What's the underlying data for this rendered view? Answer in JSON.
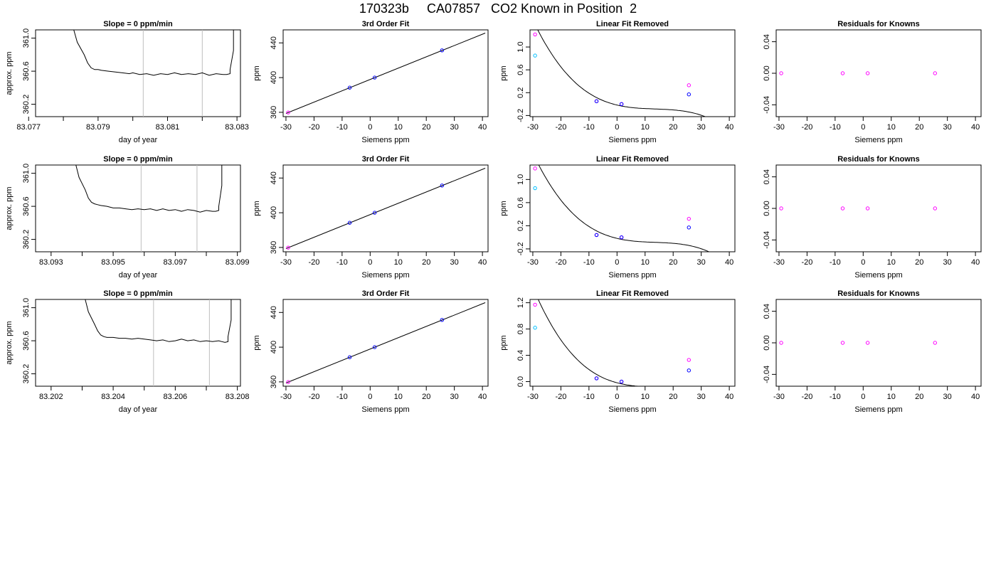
{
  "page": {
    "title": "170323b     CA07857   CO2 Known in Position  2"
  },
  "colors": {
    "curve": "#000000",
    "vline": "#bebebe",
    "point_blue": "#0000ff",
    "point_magenta": "#ff00ff",
    "point_cyan": "#00bfff",
    "point_red": "#ff0000"
  },
  "chart_data": [
    {
      "type": "line",
      "title": "Slope =  0  ppm/min",
      "xlabel": "day of year",
      "ylabel": "approx. ppm",
      "xlim": [
        83.0772,
        83.0831
      ],
      "ylim": [
        360.05,
        361.1
      ],
      "xticks": [
        83.077,
        83.079,
        83.081,
        83.083
      ],
      "xtick_labels": [
        "83.077",
        "83.079",
        "83.081",
        "83.083"
      ],
      "xminor": [
        83.078,
        83.08,
        83.082
      ],
      "yticks": [
        360.2,
        360.6,
        361.0
      ],
      "ytick_labels": [
        "360.2",
        "360.6",
        "361.0"
      ],
      "vlines": [
        83.0803,
        83.082
      ],
      "series": [
        {
          "x": [
            83.0783,
            83.0784,
            83.0786,
            83.0787,
            83.0788,
            83.0789,
            83.079,
            83.0791,
            83.0793,
            83.0795,
            83.0797,
            83.0799,
            83.08,
            83.0802,
            83.0804,
            83.0806,
            83.0808,
            83.081,
            83.0812,
            83.0814,
            83.0816,
            83.0818,
            83.082,
            83.0822,
            83.0824,
            83.0826,
            83.0827,
            83.0828,
            83.0828,
            83.0829,
            83.0829
          ],
          "y": [
            361.1,
            360.95,
            360.8,
            360.7,
            360.64,
            360.62,
            360.62,
            360.61,
            360.6,
            360.59,
            360.58,
            360.57,
            360.58,
            360.56,
            360.57,
            360.55,
            360.57,
            360.56,
            360.58,
            360.56,
            360.57,
            360.56,
            360.58,
            360.55,
            360.57,
            360.56,
            360.56,
            360.57,
            360.62,
            360.85,
            361.1
          ]
        }
      ]
    },
    {
      "type": "scatter",
      "title": "3rd Order Fit",
      "xlabel": "Siemens ppm",
      "ylabel": "ppm",
      "xlim": [
        -31,
        42
      ],
      "ylim": [
        355,
        455
      ],
      "xticks": [
        -30,
        -20,
        -10,
        0,
        10,
        20,
        30,
        40
      ],
      "xtick_labels": [
        "-30",
        "-20",
        "-10",
        "0",
        "10",
        "20",
        "30",
        "40"
      ],
      "yticks": [
        360,
        400,
        440
      ],
      "ytick_labels": [
        "360",
        "400",
        "440"
      ],
      "line": {
        "x": [
          -30,
          41
        ],
        "y": [
          358.7,
          451.3
        ]
      },
      "points": [
        {
          "x": -29.2,
          "y": 359.8,
          "color": "point_magenta"
        },
        {
          "x": -7.3,
          "y": 388.4,
          "color": "point_blue"
        },
        {
          "x": 1.6,
          "y": 400.0,
          "color": "point_blue"
        },
        {
          "x": 25.6,
          "y": 431.4,
          "color": "point_blue"
        }
      ]
    },
    {
      "type": "scatter",
      "title": "Linear Fit Removed",
      "xlabel": "Siemens ppm",
      "ylabel": "ppm",
      "xlim": [
        -31,
        42
      ],
      "ylim": [
        -0.22,
        1.3
      ],
      "xticks": [
        -30,
        -20,
        -10,
        0,
        10,
        20,
        30,
        40
      ],
      "xtick_labels": [
        "-30",
        "-20",
        "-10",
        "0",
        "10",
        "20",
        "30",
        "40"
      ],
      "yticks": [
        -0.2,
        0.2,
        0.6,
        1.0
      ],
      "ytick_labels": [
        "-0.2",
        "0.2",
        "0.6",
        "1.0"
      ],
      "curve": {
        "x0": -29.2,
        "x1": 41,
        "b0": -0.0169,
        "b1": -0.01165,
        "b2": 0.00073,
        "b3": -1.8e-05
      },
      "points": [
        {
          "x": -29.2,
          "y": 0.85,
          "color": "point_cyan"
        },
        {
          "x": -29.2,
          "y": 1.22,
          "color": "point_magenta"
        },
        {
          "x": -7.3,
          "y": 0.05,
          "color": "point_magenta"
        },
        {
          "x": -7.3,
          "y": 0.05,
          "color": "point_blue"
        },
        {
          "x": 1.6,
          "y": 0.0,
          "color": "point_magenta"
        },
        {
          "x": 1.6,
          "y": 0.0,
          "color": "point_blue"
        },
        {
          "x": 25.6,
          "y": 0.33,
          "color": "point_magenta"
        },
        {
          "x": 25.6,
          "y": 0.17,
          "color": "point_blue"
        }
      ]
    },
    {
      "type": "scatter",
      "title": "Residuals for Knowns",
      "xlabel": "Siemens ppm",
      "ylabel": "",
      "xlim": [
        -31,
        42
      ],
      "ylim": [
        -0.055,
        0.055
      ],
      "xticks": [
        -30,
        -20,
        -10,
        0,
        10,
        20,
        30,
        40
      ],
      "xtick_labels": [
        "-30",
        "-20",
        "-10",
        "0",
        "10",
        "20",
        "30",
        "40"
      ],
      "yticks": [
        -0.04,
        0.0,
        0.04
      ],
      "ytick_labels": [
        "-0.04",
        "0.00",
        "0.04"
      ],
      "points": [
        {
          "x": -29.2,
          "y": 0,
          "color": "point_magenta"
        },
        {
          "x": -7.3,
          "y": 0,
          "color": "point_magenta"
        },
        {
          "x": 1.6,
          "y": 0,
          "color": "point_magenta"
        },
        {
          "x": 25.6,
          "y": 0,
          "color": "point_magenta"
        }
      ]
    },
    {
      "type": "line",
      "title": "Slope =  0  ppm/min",
      "xlabel": "day of year",
      "ylabel": "approx. ppm",
      "xlim": [
        83.0925,
        83.0991
      ],
      "ylim": [
        360.05,
        361.1
      ],
      "xticks": [
        83.093,
        83.095,
        83.097,
        83.099
      ],
      "xtick_labels": [
        "83.093",
        "83.095",
        "83.097",
        "83.099"
      ],
      "xminor": [
        83.094,
        83.096,
        83.098
      ],
      "yticks": [
        360.2,
        360.6,
        361.0
      ],
      "ytick_labels": [
        "360.2",
        "360.6",
        "361.0"
      ],
      "vlines": [
        83.0959,
        83.0977
      ],
      "series": [
        {
          "x": [
            83.0938,
            83.0939,
            83.0941,
            83.0942,
            83.0943,
            83.0944,
            83.0945,
            83.0946,
            83.0948,
            83.095,
            83.0952,
            83.0954,
            83.0956,
            83.0958,
            83.096,
            83.0962,
            83.0964,
            83.0966,
            83.0968,
            83.097,
            83.0972,
            83.0974,
            83.0976,
            83.0978,
            83.098,
            83.0982,
            83.0983,
            83.0984,
            83.0984,
            83.0985,
            83.0985
          ],
          "y": [
            361.1,
            360.95,
            360.8,
            360.7,
            360.65,
            360.63,
            360.62,
            360.61,
            360.6,
            360.58,
            360.58,
            360.57,
            360.56,
            360.57,
            360.56,
            360.57,
            360.55,
            360.57,
            360.55,
            360.56,
            360.54,
            360.56,
            360.55,
            360.53,
            360.55,
            360.54,
            360.54,
            360.55,
            360.6,
            360.85,
            361.1
          ]
        }
      ]
    },
    {
      "type": "scatter",
      "title": "3rd Order Fit",
      "xlabel": "Siemens ppm",
      "ylabel": "ppm",
      "xlim": [
        -31,
        42
      ],
      "ylim": [
        355,
        455
      ],
      "xticks": [
        -30,
        -20,
        -10,
        0,
        10,
        20,
        30,
        40
      ],
      "xtick_labels": [
        "-30",
        "-20",
        "-10",
        "0",
        "10",
        "20",
        "30",
        "40"
      ],
      "yticks": [
        360,
        400,
        440
      ],
      "ytick_labels": [
        "360",
        "400",
        "440"
      ],
      "line": {
        "x": [
          -30,
          41
        ],
        "y": [
          358.7,
          451.3
        ]
      },
      "points": [
        {
          "x": -29.2,
          "y": 359.8,
          "color": "point_magenta"
        },
        {
          "x": -7.3,
          "y": 388.4,
          "color": "point_blue"
        },
        {
          "x": 1.6,
          "y": 400.0,
          "color": "point_blue"
        },
        {
          "x": 25.6,
          "y": 431.4,
          "color": "point_blue"
        }
      ]
    },
    {
      "type": "scatter",
      "title": "Linear Fit Removed",
      "xlabel": "Siemens ppm",
      "ylabel": "ppm",
      "xlim": [
        -31,
        42
      ],
      "ylim": [
        -0.25,
        1.25
      ],
      "xticks": [
        -30,
        -20,
        -10,
        0,
        10,
        20,
        30,
        40
      ],
      "xtick_labels": [
        "-30",
        "-20",
        "-10",
        "0",
        "10",
        "20",
        "30",
        "40"
      ],
      "yticks": [
        -0.2,
        0.2,
        0.6,
        1.0
      ],
      "ytick_labels": [
        "-0.2",
        "0.2",
        "0.6",
        "1.0"
      ],
      "curve": {
        "x0": -29.2,
        "x1": 41,
        "b0": -0.0183,
        "b1": -0.01155,
        "b2": 0.00072,
        "b3": -1.78e-05
      },
      "points": [
        {
          "x": -29.2,
          "y": 0.85,
          "color": "point_cyan"
        },
        {
          "x": -29.2,
          "y": 1.19,
          "color": "point_magenta"
        },
        {
          "x": -7.3,
          "y": 0.04,
          "color": "point_magenta"
        },
        {
          "x": -7.3,
          "y": 0.04,
          "color": "point_blue"
        },
        {
          "x": 1.6,
          "y": 0.0,
          "color": "point_magenta"
        },
        {
          "x": 1.6,
          "y": 0.0,
          "color": "point_blue"
        },
        {
          "x": 25.6,
          "y": 0.32,
          "color": "point_magenta"
        },
        {
          "x": 25.6,
          "y": 0.17,
          "color": "point_blue"
        }
      ]
    },
    {
      "type": "scatter",
      "title": "Residuals for Knowns",
      "xlabel": "Siemens ppm",
      "ylabel": "",
      "xlim": [
        -31,
        42
      ],
      "ylim": [
        -0.055,
        0.055
      ],
      "xticks": [
        -30,
        -20,
        -10,
        0,
        10,
        20,
        30,
        40
      ],
      "xtick_labels": [
        "-30",
        "-20",
        "-10",
        "0",
        "10",
        "20",
        "30",
        "40"
      ],
      "yticks": [
        -0.04,
        0.0,
        0.04
      ],
      "ytick_labels": [
        "-0.04",
        "0.00",
        "0.04"
      ],
      "points": [
        {
          "x": -29.2,
          "y": 0,
          "color": "point_magenta"
        },
        {
          "x": -7.3,
          "y": 0,
          "color": "point_magenta"
        },
        {
          "x": 1.6,
          "y": 0,
          "color": "point_magenta"
        },
        {
          "x": 25.6,
          "y": 0,
          "color": "point_magenta"
        }
      ]
    },
    {
      "type": "line",
      "title": "Slope =  0  ppm/min",
      "xlabel": "day of year",
      "ylabel": "approx. ppm",
      "xlim": [
        83.2015,
        83.2081
      ],
      "ylim": [
        360.05,
        361.1
      ],
      "xticks": [
        83.202,
        83.204,
        83.206,
        83.208
      ],
      "xtick_labels": [
        "83.202",
        "83.204",
        "83.206",
        "83.208"
      ],
      "xminor": [
        83.203,
        83.205,
        83.207
      ],
      "yticks": [
        360.2,
        360.6,
        361.0
      ],
      "ytick_labels": [
        "360.2",
        "360.6",
        "361.0"
      ],
      "vlines": [
        83.2053,
        83.2071
      ],
      "series": [
        {
          "x": [
            83.2031,
            83.2032,
            83.2034,
            83.2035,
            83.2036,
            83.2037,
            83.2038,
            83.204,
            83.2042,
            83.2044,
            83.2046,
            83.2048,
            83.205,
            83.2052,
            83.2054,
            83.2056,
            83.2058,
            83.206,
            83.2062,
            83.2064,
            83.2066,
            83.2068,
            83.207,
            83.2072,
            83.2074,
            83.2075,
            83.2076,
            83.2077,
            83.2077,
            83.2078,
            83.2078
          ],
          "y": [
            361.1,
            360.95,
            360.8,
            360.72,
            360.67,
            360.65,
            360.64,
            360.64,
            360.63,
            360.63,
            360.62,
            360.63,
            360.62,
            360.61,
            360.6,
            360.61,
            360.59,
            360.6,
            360.62,
            360.6,
            360.61,
            360.59,
            360.6,
            360.59,
            360.6,
            360.59,
            360.58,
            360.59,
            360.65,
            360.85,
            361.1
          ]
        }
      ]
    },
    {
      "type": "scatter",
      "title": "3rd Order Fit",
      "xlabel": "Siemens ppm",
      "ylabel": "ppm",
      "xlim": [
        -31,
        42
      ],
      "ylim": [
        355,
        455
      ],
      "xticks": [
        -30,
        -20,
        -10,
        0,
        10,
        20,
        30,
        40
      ],
      "xtick_labels": [
        "-30",
        "-20",
        "-10",
        "0",
        "10",
        "20",
        "30",
        "40"
      ],
      "yticks": [
        360,
        400,
        440
      ],
      "ytick_labels": [
        "360",
        "400",
        "440"
      ],
      "line": {
        "x": [
          -30,
          41
        ],
        "y": [
          358.7,
          451.3
        ]
      },
      "points": [
        {
          "x": -29.2,
          "y": 359.8,
          "color": "point_magenta"
        },
        {
          "x": -7.3,
          "y": 388.4,
          "color": "point_blue"
        },
        {
          "x": 1.6,
          "y": 400.0,
          "color": "point_blue"
        },
        {
          "x": 25.6,
          "y": 431.4,
          "color": "point_blue"
        }
      ]
    },
    {
      "type": "scatter",
      "title": "Linear Fit Removed",
      "xlabel": "Siemens ppm",
      "ylabel": "ppm",
      "xlim": [
        -31,
        42
      ],
      "ylim": [
        -0.07,
        1.25
      ],
      "xticks": [
        -30,
        -20,
        -10,
        0,
        10,
        20,
        30,
        40
      ],
      "xtick_labels": [
        "-30",
        "-20",
        "-10",
        "0",
        "10",
        "20",
        "30",
        "40"
      ],
      "yticks": [
        0.0,
        0.4,
        0.8,
        1.2
      ],
      "ytick_labels": [
        "0.0",
        "0.4",
        "0.8",
        "1.2"
      ],
      "curve": {
        "x0": -29.2,
        "x1": 41,
        "b0": -0.0179,
        "b1": -0.01137,
        "b2": 0.00071,
        "b3": -1.76e-05
      },
      "points": [
        {
          "x": -29.2,
          "y": 0.82,
          "color": "point_cyan"
        },
        {
          "x": -29.2,
          "y": 1.17,
          "color": "point_magenta"
        },
        {
          "x": -7.3,
          "y": 0.05,
          "color": "point_magenta"
        },
        {
          "x": -7.3,
          "y": 0.05,
          "color": "point_blue"
        },
        {
          "x": 1.6,
          "y": 0.0,
          "color": "point_magenta"
        },
        {
          "x": 1.6,
          "y": 0.0,
          "color": "point_blue"
        },
        {
          "x": 25.6,
          "y": 0.33,
          "color": "point_magenta"
        },
        {
          "x": 25.6,
          "y": 0.17,
          "color": "point_blue"
        }
      ]
    },
    {
      "type": "scatter",
      "title": "Residuals for Knowns",
      "xlabel": "Siemens ppm",
      "ylabel": "",
      "xlim": [
        -31,
        42
      ],
      "ylim": [
        -0.055,
        0.055
      ],
      "xticks": [
        -30,
        -20,
        -10,
        0,
        10,
        20,
        30,
        40
      ],
      "xtick_labels": [
        "-30",
        "-20",
        "-10",
        "0",
        "10",
        "20",
        "30",
        "40"
      ],
      "yticks": [
        -0.04,
        0.0,
        0.04
      ],
      "ytick_labels": [
        "-0.04",
        "0.00",
        "0.04"
      ],
      "points": [
        {
          "x": -29.2,
          "y": 0,
          "color": "point_magenta"
        },
        {
          "x": -7.3,
          "y": 0,
          "color": "point_magenta"
        },
        {
          "x": 1.6,
          "y": 0,
          "color": "point_magenta"
        },
        {
          "x": 25.6,
          "y": 0,
          "color": "point_magenta"
        }
      ]
    }
  ]
}
